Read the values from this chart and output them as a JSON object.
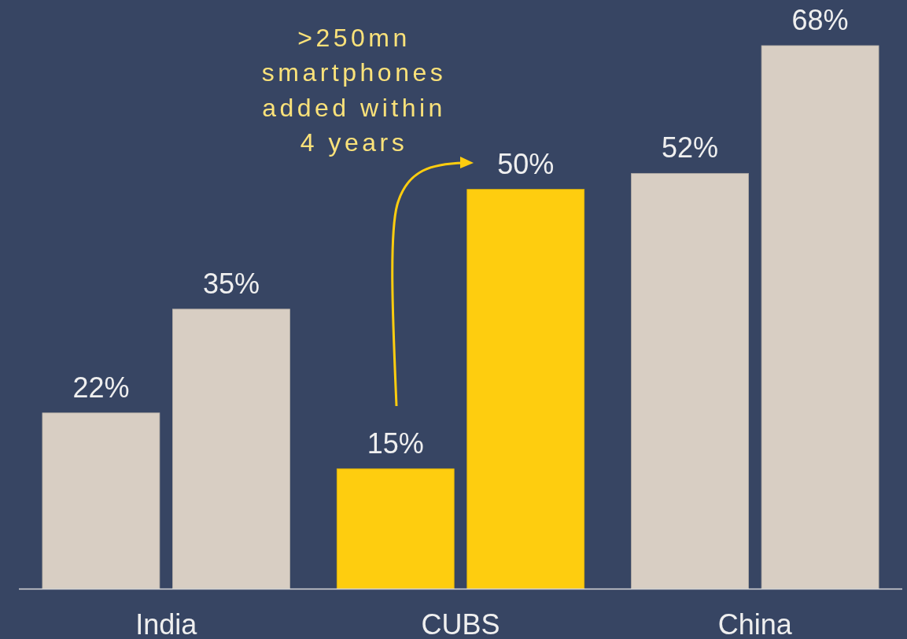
{
  "chart_data": {
    "type": "bar",
    "categories": [
      "India",
      "CUBS",
      "China"
    ],
    "series": [
      {
        "values": [
          22,
          15,
          52
        ],
        "colors": [
          "#d8cec3",
          "#fecd0f",
          "#d8cec3"
        ],
        "value_labels": [
          "22%",
          "15%",
          "52%"
        ]
      },
      {
        "values": [
          35,
          50,
          68
        ],
        "colors": [
          "#d8cec3",
          "#fecd0f",
          "#d8cec3"
        ],
        "value_labels": [
          "35%",
          "50%",
          "68%"
        ]
      }
    ],
    "annotations": [
      ">250mn smartphones added within 4 years"
    ]
  }
}
